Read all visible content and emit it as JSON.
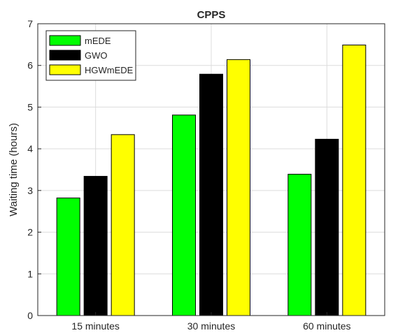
{
  "chart_data": {
    "type": "bar",
    "title": "CPPS",
    "xlabel": "",
    "ylabel": "Waiting time (hours)",
    "categories": [
      "15 minutes",
      "30 minutes",
      "60 minutes"
    ],
    "series": [
      {
        "name": "mEDE",
        "color": "#00ff00",
        "values": [
          2.82,
          4.81,
          3.39
        ]
      },
      {
        "name": "GWO",
        "color": "#000000",
        "values": [
          3.34,
          5.79,
          4.23
        ]
      },
      {
        "name": "HGWmEDE",
        "color": "#ffff00",
        "values": [
          4.34,
          6.14,
          6.49
        ]
      }
    ],
    "ylim": [
      0,
      7
    ],
    "yticks": [
      0,
      1,
      2,
      3,
      4,
      5,
      6,
      7
    ],
    "grid": true,
    "legend_position": "top-left"
  }
}
